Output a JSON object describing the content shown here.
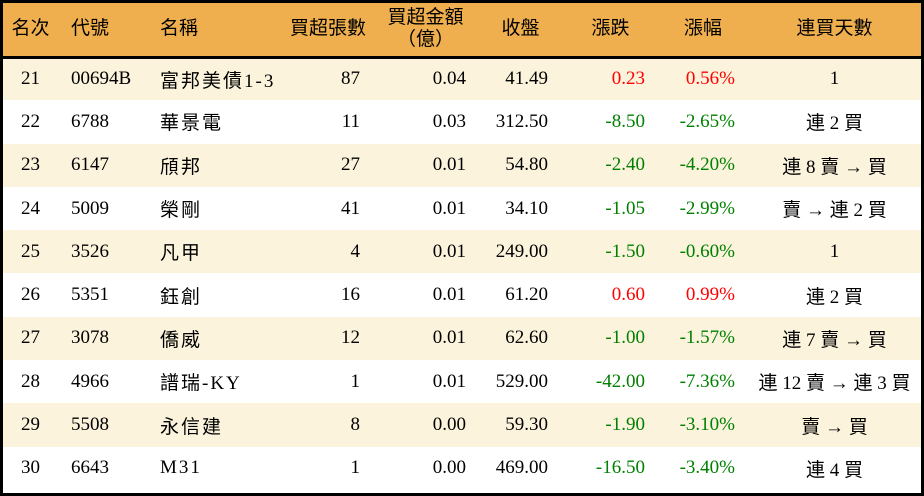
{
  "table": {
    "header": {
      "rank": "名次",
      "code": "代號",
      "name": "名稱",
      "volume": "買超張數",
      "amount_line1": "買超金額",
      "amount_line2": "（億）",
      "close": "收盤",
      "change": "漲跌",
      "change_pct": "漲幅",
      "streak": "連買天數"
    }
  },
  "chart_data": {
    "type": "table",
    "columns": [
      "名次",
      "代號",
      "名稱",
      "買超張數",
      "買超金額（億）",
      "收盤",
      "漲跌",
      "漲幅",
      "連買天數"
    ],
    "rows": [
      {
        "rank": "21",
        "code": "00694B",
        "name": "富邦美債1-3",
        "volume": "87",
        "amount": "0.04",
        "close": "41.49",
        "change": "0.23",
        "change_pct": "0.56%",
        "streak": "1",
        "direction": "up"
      },
      {
        "rank": "22",
        "code": "6788",
        "name": "華景電",
        "volume": "11",
        "amount": "0.03",
        "close": "312.50",
        "change": "-8.50",
        "change_pct": "-2.65%",
        "streak": "連 2 買",
        "direction": "down"
      },
      {
        "rank": "23",
        "code": "6147",
        "name": "頎邦",
        "volume": "27",
        "amount": "0.01",
        "close": "54.80",
        "change": "-2.40",
        "change_pct": "-4.20%",
        "streak": "連 8 賣 → 買",
        "direction": "down"
      },
      {
        "rank": "24",
        "code": "5009",
        "name": "榮剛",
        "volume": "41",
        "amount": "0.01",
        "close": "34.10",
        "change": "-1.05",
        "change_pct": "-2.99%",
        "streak": "賣 → 連 2 買",
        "direction": "down"
      },
      {
        "rank": "25",
        "code": "3526",
        "name": "凡甲",
        "volume": "4",
        "amount": "0.01",
        "close": "249.00",
        "change": "-1.50",
        "change_pct": "-0.60%",
        "streak": "1",
        "direction": "down"
      },
      {
        "rank": "26",
        "code": "5351",
        "name": "鈺創",
        "volume": "16",
        "amount": "0.01",
        "close": "61.20",
        "change": "0.60",
        "change_pct": "0.99%",
        "streak": "連 2 買",
        "direction": "up"
      },
      {
        "rank": "27",
        "code": "3078",
        "name": "僑威",
        "volume": "12",
        "amount": "0.01",
        "close": "62.60",
        "change": "-1.00",
        "change_pct": "-1.57%",
        "streak": "連 7 賣 → 買",
        "direction": "down"
      },
      {
        "rank": "28",
        "code": "4966",
        "name": "譜瑞-KY",
        "volume": "1",
        "amount": "0.01",
        "close": "529.00",
        "change": "-42.00",
        "change_pct": "-7.36%",
        "streak": "連 12 賣 → 連 3 買",
        "direction": "down"
      },
      {
        "rank": "29",
        "code": "5508",
        "name": "永信建",
        "volume": "8",
        "amount": "0.00",
        "close": "59.30",
        "change": "-1.90",
        "change_pct": "-3.10%",
        "streak": "賣 → 買",
        "direction": "down"
      },
      {
        "rank": "30",
        "code": "6643",
        "name": "M31",
        "volume": "1",
        "amount": "0.00",
        "close": "469.00",
        "change": "-16.50",
        "change_pct": "-3.40%",
        "streak": "連 4 買",
        "direction": "down"
      }
    ]
  },
  "colors": {
    "header_bg": "#F0AF4E",
    "row_alt_bg": "#FBF3DC",
    "row_bg": "#FFFFFF",
    "border": "#000000",
    "text": "#000000",
    "up": "#FF0000",
    "down": "#008000"
  }
}
